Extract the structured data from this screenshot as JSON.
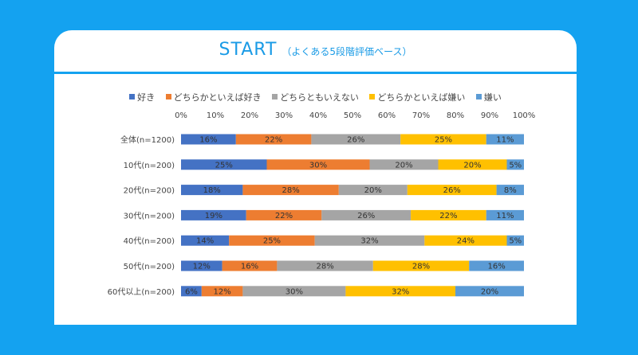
{
  "title": "START",
  "subtitle": "（よくある5段階評価ベース）",
  "chart_data": {
    "type": "bar",
    "orientation": "horizontal",
    "stacked": "percent",
    "categories": [
      "全体(n=1200)",
      "10代(n=200)",
      "20代(n=200)",
      "30代(n=200)",
      "40代(n=200)",
      "50代(n=200)",
      "60代以上(n=200)"
    ],
    "series": [
      {
        "name": "好き",
        "color": "#4472c4",
        "values": [
          16,
          25,
          18,
          19,
          14,
          12,
          6
        ]
      },
      {
        "name": "どちらかといえば好き",
        "color": "#ed7d31",
        "values": [
          22,
          30,
          28,
          22,
          25,
          16,
          12
        ]
      },
      {
        "name": "どちらともいえない",
        "color": "#a5a5a5",
        "values": [
          26,
          20,
          20,
          26,
          32,
          28,
          30
        ]
      },
      {
        "name": "どちらかといえば嫌い",
        "color": "#ffc000",
        "values": [
          25,
          20,
          26,
          22,
          24,
          28,
          32
        ]
      },
      {
        "name": "嫌い",
        "color": "#5b9bd5",
        "values": [
          11,
          5,
          8,
          11,
          5,
          16,
          20
        ]
      }
    ],
    "xticks": [
      "0%",
      "10%",
      "20%",
      "30%",
      "40%",
      "50%",
      "60%",
      "70%",
      "80%",
      "90%",
      "100%"
    ],
    "xlim": [
      0,
      100
    ],
    "legend": "top",
    "grid": false
  }
}
